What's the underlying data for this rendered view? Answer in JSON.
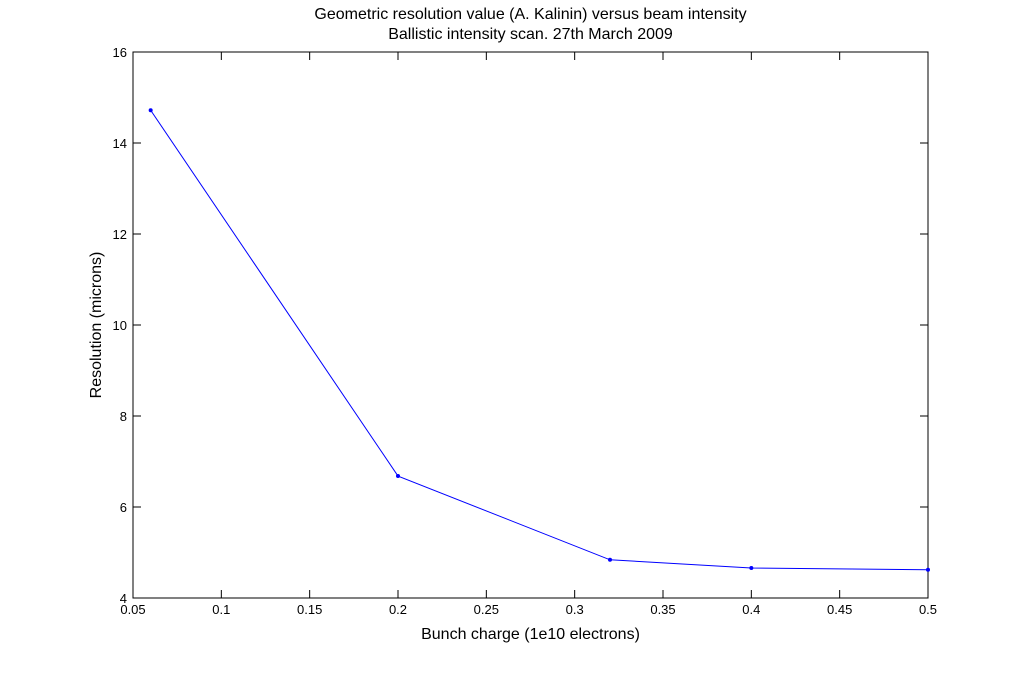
{
  "chart_data": {
    "type": "line",
    "title": "Geometric resolution value (A. Kalinin) versus beam intensity",
    "subtitle": "Ballistic intensity scan.  27th March 2009",
    "xlabel": "Bunch charge (1e10 electrons)",
    "ylabel": "Resolution (microns)",
    "xlim": [
      0.05,
      0.5
    ],
    "ylim": [
      4,
      16
    ],
    "xticks": [
      0.05,
      0.1,
      0.15,
      0.2,
      0.25,
      0.3,
      0.35,
      0.4,
      0.45,
      0.5
    ],
    "xtick_labels": [
      "0.05",
      "0.1",
      "0.15",
      "0.2",
      "0.25",
      "0.3",
      "0.35",
      "0.4",
      "0.45",
      "0.5"
    ],
    "yticks": [
      4,
      6,
      8,
      10,
      12,
      14,
      16
    ],
    "ytick_labels": [
      "4",
      "6",
      "8",
      "10",
      "12",
      "14",
      "16"
    ],
    "grid": false,
    "legend": "none",
    "series": [
      {
        "color": "#0000ff",
        "marker": "dot",
        "x": [
          0.06,
          0.2,
          0.32,
          0.4,
          0.5
        ],
        "y": [
          14.72,
          6.68,
          4.84,
          4.66,
          4.62
        ]
      }
    ]
  }
}
